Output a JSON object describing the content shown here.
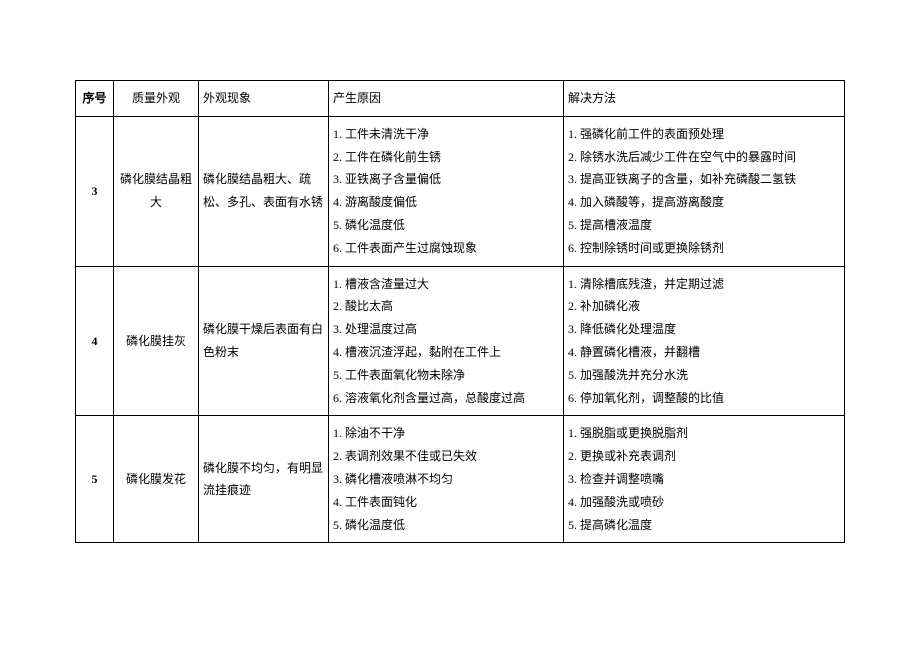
{
  "headers": {
    "seq": "序号",
    "quality": "质量外观",
    "phenom": "外观现象",
    "cause": "产生原因",
    "solution": "解决方法"
  },
  "rows": [
    {
      "seq": "3",
      "quality": "磷化膜结晶粗大",
      "phenom": "磷化膜结晶粗大、疏松、多孔、表面有水锈",
      "causes": [
        "1. 工件未清洗干净",
        "2. 工件在磷化前生锈",
        "3. 亚铁离子含量偏低",
        "4. 游离酸度偏低",
        "5. 磷化温度低",
        "6. 工件表面产生过腐蚀现象"
      ],
      "solutions": [
        "1. 强磷化前工件的表面预处理",
        "2. 除锈水洗后减少工件在空气中的暴露时间",
        "3. 提高亚铁离子的含量，如补充磷酸二氢铁",
        "4. 加入磷酸等，提高游离酸度",
        "5. 提高槽液温度",
        "6. 控制除锈时间或更换除锈剂"
      ]
    },
    {
      "seq": "4",
      "quality": "磷化膜挂灰",
      "phenom": "磷化膜干燥后表面有白色粉末",
      "causes": [
        "1. 槽液含渣量过大",
        "2. 酸比太高",
        "3. 处理温度过高",
        "4. 槽液沉渣浮起，黏附在工件上",
        "5. 工件表面氧化物未除净",
        "6. 溶液氧化剂含量过高，总酸度过高"
      ],
      "solutions": [
        "1. 清除槽底残渣，并定期过滤",
        "2. 补加磷化液",
        "3. 降低磷化处理温度",
        "4. 静置磷化槽液，并翻槽",
        "5. 加强酸洗并充分水洗",
        "6. 停加氧化剂，调整酸的比值"
      ]
    },
    {
      "seq": "5",
      "quality": "磷化膜发花",
      "phenom": "磷化膜不均匀，有明显流挂痕迹",
      "causes": [
        "1. 除油不干净",
        "2. 表调剂效果不佳或已失效",
        "3. 磷化槽液喷淋不均匀",
        "4. 工件表面钝化",
        "5. 磷化温度低"
      ],
      "solutions": [
        "1. 强脱脂或更换脱脂剂",
        "2. 更换或补充表调剂",
        "3. 检查并调整喷嘴",
        "4. 加强酸洗或喷砂",
        "5. 提高磷化温度"
      ]
    }
  ]
}
